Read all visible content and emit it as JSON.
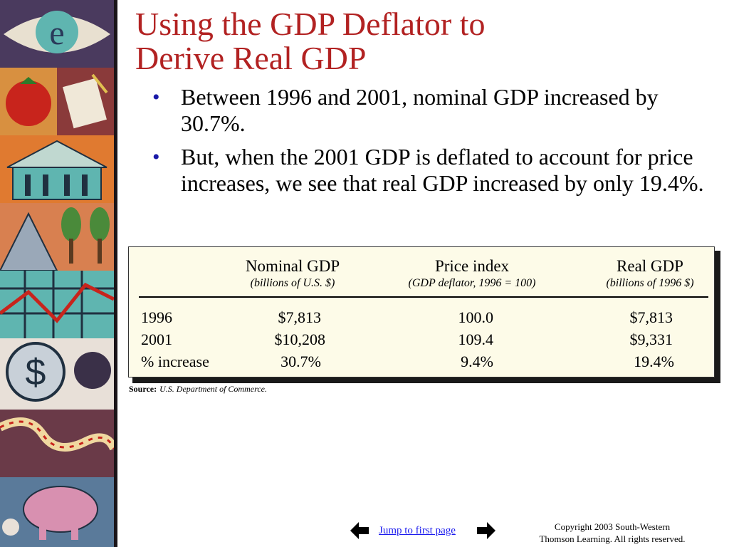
{
  "title_line1": "Using the GDP Deflator to",
  "title_line2": "Derive Real GDP",
  "bullets": [
    "Between 1996 and 2001, nominal GDP increased by 30.7%.",
    "But, when the 2001 GDP is deflated to account for price increases, we see that real GDP increased by only 19.4%."
  ],
  "table": {
    "columns": [
      {
        "header": "Nominal GDP",
        "sub": "(billions of U.S. $)"
      },
      {
        "header": "Price index",
        "sub": "(GDP deflator, 1996 = 100)"
      },
      {
        "header": "Real GDP",
        "sub": "(billions of 1996 $)"
      }
    ],
    "rows": [
      {
        "label": "1996",
        "nominal": "$7,813",
        "price": "100.0",
        "real": "$7,813"
      },
      {
        "label": "2001",
        "nominal": "$10,208",
        "price": "109.4",
        "real": "$9,331"
      },
      {
        "label": "% increase",
        "nominal": "30.7%",
        "price": "9.4%",
        "real": "19.4%"
      }
    ]
  },
  "source": {
    "label": "Source:",
    "text": "U.S. Department of Commerce."
  },
  "footer": {
    "jump_label": "Jump to first page",
    "copyright_line1": "Copyright 2003 South-Western",
    "copyright_line2": "Thomson Learning. All rights reserved."
  },
  "icons": {
    "prev": "arrow-left-icon",
    "next": "arrow-right-icon"
  },
  "colors": {
    "title": "#b22222",
    "bullet": "#1a1aa8",
    "link": "#1a1aee",
    "table_bg": "#fdfbe8"
  }
}
